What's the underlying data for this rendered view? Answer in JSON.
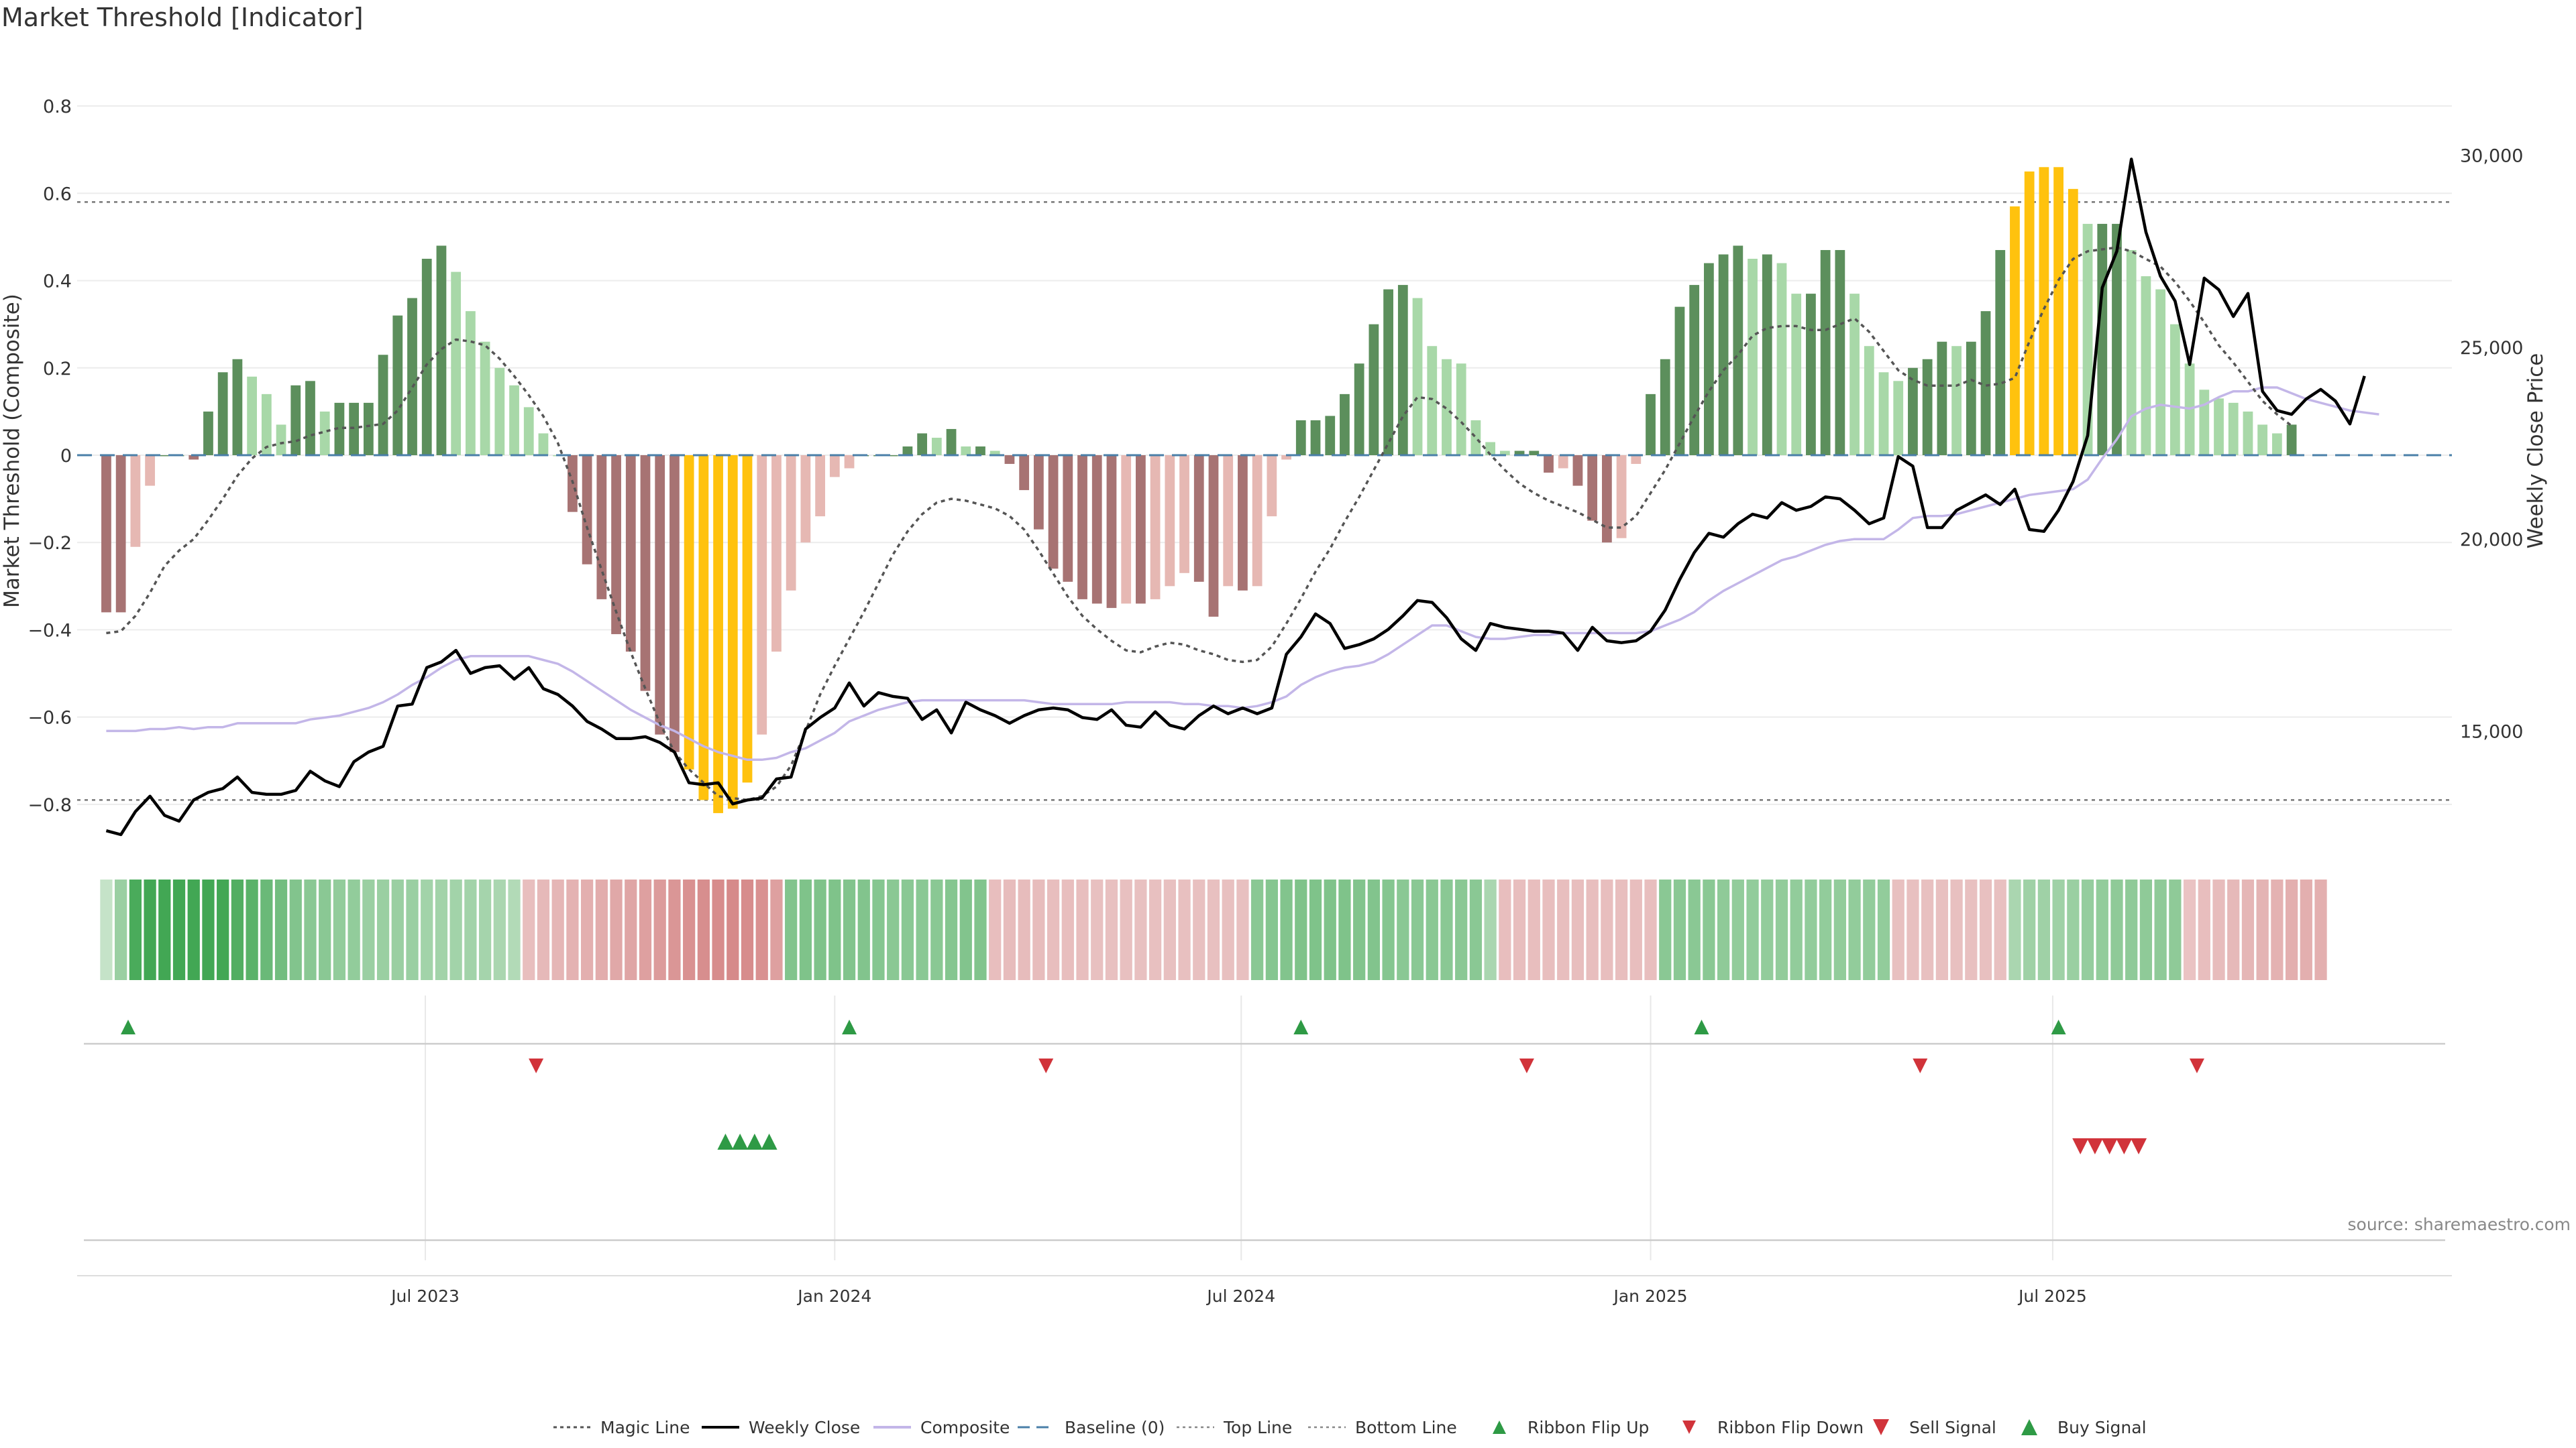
{
  "title": "Market Threshold [Indicator]",
  "source": "source: sharemaestro.com",
  "colors": {
    "strong_pos": "#5c8f5c",
    "weak_pos": "#a8d8a8",
    "strong_neg": "#a77373",
    "weak_neg": "#e6b8b3",
    "extreme": "#ffc20e",
    "close": "#000000",
    "composite": "#c3b6e8",
    "magic": "#555555",
    "baseline": "#4a7fa8",
    "signal_up": "#2e9a45",
    "signal_down": "#d1333a"
  },
  "chart_data": {
    "type": "bar",
    "ylabel_left": "Market Threshold (Composite)",
    "ylabel_right": "Weekly Close Price",
    "left_ticks": [
      "0.8",
      "0.6",
      "0.4",
      "0.2",
      "0",
      "−0.2",
      "−0.4",
      "−0.6",
      "−0.8"
    ],
    "left_tick_values": [
      0.8,
      0.6,
      0.4,
      0.2,
      0,
      -0.2,
      -0.4,
      -0.6,
      -0.8
    ],
    "right_ticks": [
      "30,000",
      "25,000",
      "20,000",
      "15,000"
    ],
    "right_tick_values": [
      30000,
      25000,
      20000,
      15000
    ],
    "ylim_left": [
      -0.9,
      0.92
    ],
    "ylim_right": [
      11950,
      32650
    ],
    "xlim": [
      -2,
      161
    ],
    "x_ticks": [
      {
        "label": "Jul 2023",
        "x": 21.9
      },
      {
        "label": "Jan 2024",
        "x": 50.0
      },
      {
        "label": "Jul 2024",
        "x": 77.9
      },
      {
        "label": "Jan 2025",
        "x": 106.0
      },
      {
        "label": "Jul 2025",
        "x": 133.6
      }
    ],
    "top_line": 0.58,
    "bottom_line": -0.79,
    "baseline": 0,
    "grid": true,
    "legend_position": "bottom-center",
    "composite_values": [
      -0.36,
      -0.36,
      -0.21,
      -0.07,
      0,
      0,
      -0.01,
      0.1,
      0.19,
      0.22,
      0.18,
      0.14,
      0.07,
      0.16,
      0.17,
      0.1,
      0.12,
      0.12,
      0.12,
      0.23,
      0.32,
      0.36,
      0.45,
      0.48,
      0.42,
      0.33,
      0.26,
      0.2,
      0.16,
      0.11,
      0.05,
      0,
      -0.13,
      -0.25,
      -0.33,
      -0.41,
      -0.45,
      -0.54,
      -0.64,
      -0.68,
      -0.72,
      -0.79,
      -0.82,
      -0.81,
      -0.75,
      -0.64,
      -0.45,
      -0.31,
      -0.2,
      -0.14,
      -0.05,
      -0.03,
      0,
      0,
      0,
      0.02,
      0.05,
      0.04,
      0.06,
      0.02,
      0.02,
      0.01,
      -0.02,
      -0.08,
      -0.17,
      -0.26,
      -0.29,
      -0.33,
      -0.34,
      -0.35,
      -0.34,
      -0.34,
      -0.33,
      -0.3,
      -0.27,
      -0.29,
      -0.37,
      -0.3,
      -0.31,
      -0.3,
      -0.14,
      -0.01,
      0.08,
      0.08,
      0.09,
      0.14,
      0.21,
      0.3,
      0.38,
      0.39,
      0.36,
      0.25,
      0.22,
      0.21,
      0.08,
      0.03,
      0.01,
      0.01,
      0.01,
      -0.04,
      -0.03,
      -0.07,
      -0.15,
      -0.2,
      -0.19,
      -0.02,
      0.14,
      0.22,
      0.34,
      0.39,
      0.44,
      0.46,
      0.48,
      0.45,
      0.46,
      0.44,
      0.37,
      0.37,
      0.47,
      0.47,
      0.37,
      0.25,
      0.19,
      0.17,
      0.2,
      0.22,
      0.26,
      0.25,
      0.26,
      0.33,
      0.47,
      0.57,
      0.65,
      0.66,
      0.66,
      0.61,
      0.53,
      0.53,
      0.53,
      0.47,
      0.41,
      0.38,
      0.3,
      0.21,
      0.15,
      0.13,
      0.12,
      0.1,
      0.07,
      0.05,
      0.07
    ],
    "weekly_close": [
      12400,
      12300,
      12900,
      13300,
      12800,
      12650,
      13200,
      13400,
      13500,
      13800,
      13400,
      13350,
      13350,
      13450,
      13950,
      13700,
      13550,
      14200,
      14450,
      14600,
      15650,
      15700,
      16650,
      16800,
      17100,
      16500,
      16650,
      16700,
      16350,
      16650,
      16100,
      15950,
      15650,
      15250,
      15050,
      14800,
      14800,
      14850,
      14700,
      14450,
      13650,
      13600,
      13650,
      13100,
      13200,
      13250,
      13750,
      13800,
      15050,
      15350,
      15600,
      16250,
      15650,
      16000,
      15900,
      15850,
      15300,
      15550,
      14950,
      15750,
      15550,
      15400,
      15200,
      15400,
      15550,
      15600,
      15550,
      15350,
      15300,
      15550,
      15150,
      15100,
      15500,
      15150,
      15050,
      15400,
      15650,
      15450,
      15600,
      15450,
      15600,
      17000,
      17450,
      18050,
      17800,
      17150,
      17250,
      17400,
      17650,
      18000,
      18400,
      18350,
      17950,
      17400,
      17100,
      17800,
      17700,
      17650,
      17600,
      17600,
      17550,
      17100,
      17700,
      17350,
      17300,
      17350,
      17600,
      18150,
      18950,
      19650,
      20150,
      20050,
      20400,
      20650,
      20550,
      20950,
      20750,
      20850,
      21100,
      21050,
      20750,
      20400,
      20550,
      22150,
      21900,
      20300,
      20300,
      20750,
      20950,
      21150,
      20900,
      21300,
      20250,
      20200,
      20750,
      21500,
      22700,
      26550,
      27500,
      29900,
      28000,
      26850,
      26200,
      24550,
      26800,
      26500,
      25800,
      26400,
      23850,
      23350,
      23250,
      23650,
      23900,
      23600,
      23000,
      24250
    ],
    "composite_line": [
      15000,
      15000,
      15000,
      15050,
      15050,
      15100,
      15050,
      15100,
      15100,
      15200,
      15200,
      15200,
      15200,
      15200,
      15300,
      15350,
      15400,
      15500,
      15600,
      15750,
      15950,
      16200,
      16400,
      16650,
      16850,
      16950,
      16950,
      16950,
      16950,
      16950,
      16850,
      16750,
      16550,
      16300,
      16050,
      15800,
      15550,
      15350,
      15150,
      15000,
      14800,
      14600,
      14450,
      14350,
      14250,
      14250,
      14300,
      14450,
      14550,
      14750,
      14950,
      15250,
      15400,
      15550,
      15650,
      15750,
      15800,
      15800,
      15800,
      15800,
      15800,
      15800,
      15800,
      15800,
      15750,
      15700,
      15700,
      15700,
      15700,
      15700,
      15750,
      15750,
      15750,
      15750,
      15700,
      15700,
      15650,
      15650,
      15600,
      15650,
      15750,
      15900,
      16200,
      16400,
      16550,
      16650,
      16700,
      16800,
      17000,
      17250,
      17500,
      17750,
      17750,
      17600,
      17450,
      17400,
      17400,
      17450,
      17500,
      17500,
      17550,
      17550,
      17550,
      17550,
      17550,
      17550,
      17600,
      17750,
      17900,
      18100,
      18400,
      18650,
      18850,
      19050,
      19250,
      19450,
      19550,
      19700,
      19850,
      19950,
      20000,
      20000,
      20000,
      20250,
      20550,
      20600,
      20600,
      20650,
      20750,
      20850,
      20950,
      21050,
      21150,
      21200,
      21250,
      21300,
      21550,
      22100,
      22600,
      23200,
      23400,
      23500,
      23450,
      23400,
      23500,
      23700,
      23850,
      23850,
      23950,
      23950,
      23800,
      23650,
      23550,
      23450,
      23350,
      23300,
      23250
    ],
    "magic_line": [
      17550,
      17600,
      18000,
      18600,
      19300,
      19700,
      20000,
      20500,
      21050,
      21650,
      22100,
      22400,
      22500,
      22550,
      22700,
      22800,
      22900,
      22900,
      22950,
      23000,
      23350,
      23950,
      24550,
      24950,
      25200,
      25150,
      25050,
      24700,
      24250,
      23750,
      23200,
      22500,
      21500,
      20300,
      19200,
      18100,
      17050,
      16100,
      15200,
      14450,
      14000,
      13650,
      13300,
      13250,
      13200,
      13300,
      13550,
      14100,
      15000,
      15950,
      16700,
      17400,
      18100,
      18850,
      19600,
      20200,
      20650,
      20950,
      21050,
      21000,
      20900,
      20800,
      20600,
      20250,
      19700,
      19100,
      18500,
      18000,
      17650,
      17350,
      17100,
      17050,
      17200,
      17300,
      17250,
      17100,
      17000,
      16850,
      16800,
      16850,
      17200,
      17800,
      18450,
      19150,
      19750,
      20450,
      21100,
      21800,
      22500,
      23200,
      23700,
      23650,
      23400,
      23050,
      22650,
      22200,
      21800,
      21450,
      21200,
      21000,
      20850,
      20700,
      20500,
      20300,
      20300,
      20600,
      21200,
      21800,
      22500,
      23200,
      23850,
      24400,
      24800,
      25300,
      25500,
      25550,
      25550,
      25450,
      25450,
      25600,
      25750,
      25400,
      24900,
      24400,
      24150,
      24000,
      24000,
      24000,
      24150,
      24000,
      24050,
      24200,
      25150,
      26000,
      26750,
      27300,
      27500,
      27550,
      27600,
      27500,
      27300,
      27100,
      26700,
      26200,
      25650,
      25050,
      24600,
      24100,
      23600,
      23250,
      22950
    ],
    "heat_strip": [
      0.18,
      0.45,
      0.95,
      1,
      1,
      1,
      1,
      1,
      1,
      0.9,
      0.85,
      0.75,
      0.7,
      0.6,
      0.55,
      0.55,
      0.5,
      0.5,
      0.45,
      0.45,
      0.45,
      0.45,
      0.4,
      0.4,
      0.4,
      0.4,
      0.38,
      0.35,
      0.3,
      -0.3,
      -0.35,
      -0.38,
      -0.42,
      -0.45,
      -0.48,
      -0.52,
      -0.55,
      -0.6,
      -0.65,
      -0.7,
      -0.75,
      -0.78,
      -0.8,
      -0.82,
      -0.8,
      -0.75,
      -0.6,
      0.6,
      0.62,
      0.62,
      0.62,
      0.6,
      0.6,
      0.58,
      0.55,
      0.55,
      0.55,
      0.55,
      0.58,
      0.6,
      0.6,
      -0.3,
      -0.32,
      -0.32,
      -0.32,
      -0.3,
      -0.3,
      -0.3,
      -0.28,
      -0.28,
      -0.28,
      -0.28,
      -0.28,
      -0.28,
      -0.28,
      -0.28,
      -0.28,
      -0.28,
      -0.28,
      0.55,
      0.58,
      0.6,
      0.62,
      0.62,
      0.62,
      0.62,
      0.6,
      0.6,
      0.58,
      0.55,
      0.55,
      0.55,
      0.55,
      0.55,
      0.55,
      0.35,
      -0.3,
      -0.3,
      -0.3,
      -0.3,
      -0.3,
      -0.3,
      -0.3,
      -0.3,
      -0.3,
      -0.3,
      -0.3,
      0.55,
      0.55,
      0.55,
      0.55,
      0.52,
      0.5,
      0.5,
      0.5,
      0.5,
      0.5,
      0.5,
      0.5,
      0.5,
      0.5,
      0.5,
      0.5,
      -0.28,
      -0.28,
      -0.28,
      -0.28,
      -0.28,
      -0.28,
      -0.28,
      -0.28,
      0.35,
      0.42,
      0.42,
      0.42,
      0.45,
      0.48,
      0.5,
      0.52,
      0.52,
      0.52,
      0.52,
      0.52,
      -0.25,
      -0.3,
      -0.32,
      -0.35,
      -0.38,
      -0.4,
      -0.42,
      -0.45,
      -0.45,
      -0.45
    ],
    "ribbon_flip_up": [
      1.5,
      51,
      82,
      109.5,
      134
    ],
    "ribbon_flip_down": [
      29.5,
      64.5,
      97.5,
      124.5,
      143.5
    ],
    "buy_signal": [
      42.5,
      43.5,
      44.5,
      45.5
    ],
    "sell_signal": [
      135.5,
      136.5,
      137.5,
      138.5,
      139.5
    ],
    "series": [
      {
        "name": "Magic Line"
      },
      {
        "name": "Weekly Close"
      },
      {
        "name": "Composite"
      },
      {
        "name": "Baseline (0)"
      },
      {
        "name": "Top Line"
      },
      {
        "name": "Bottom Line"
      },
      {
        "name": "Ribbon Flip Up"
      },
      {
        "name": "Ribbon Flip Down"
      },
      {
        "name": "Sell Signal"
      },
      {
        "name": "Buy Signal"
      }
    ]
  }
}
